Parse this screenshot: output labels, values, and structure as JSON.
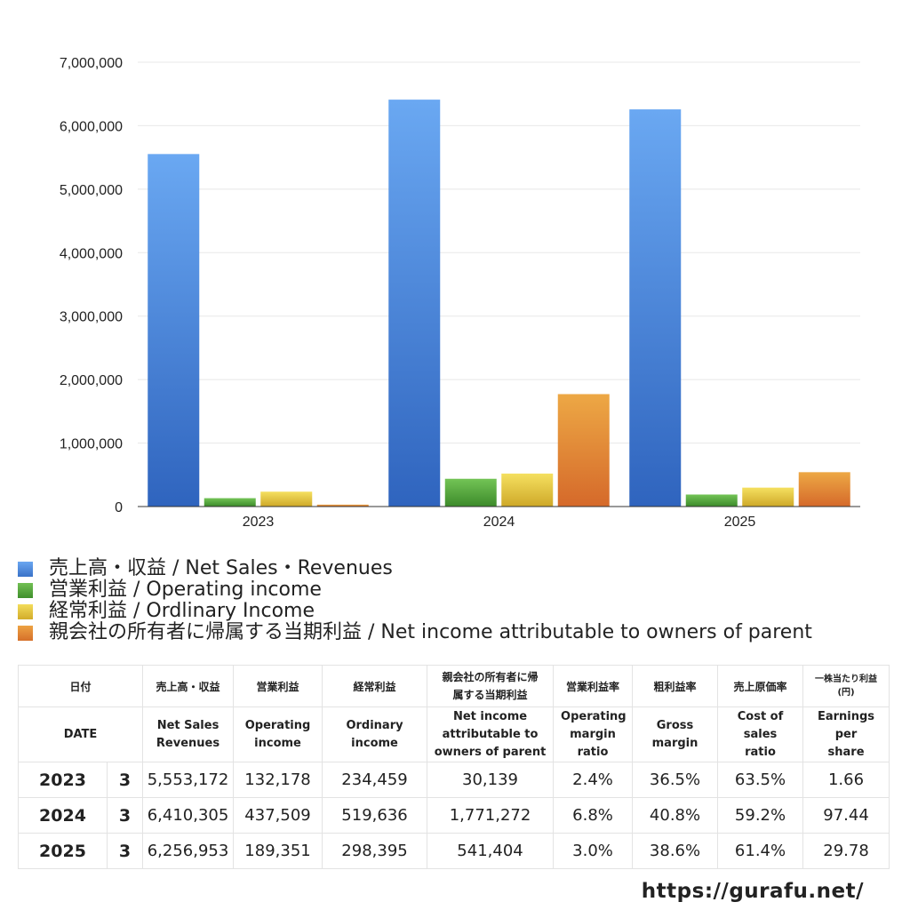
{
  "chart_data": {
    "type": "bar",
    "categories": [
      "2023",
      "2024",
      "2025"
    ],
    "ylim": [
      0,
      7000000
    ],
    "yticks": [
      "7,000,000",
      "6,000,000",
      "5,000,000",
      "4,000,000",
      "3,000,000",
      "2,000,000",
      "1,000,000",
      "0"
    ],
    "grid": true,
    "legend_position": "bottom",
    "series": [
      {
        "name": "売上高・収益 / Net Sales・Revenues",
        "values": [
          5553172,
          6410305,
          6256953
        ],
        "color": "#4a84d8"
      },
      {
        "name": "営業利益 / Operating income",
        "values": [
          132178,
          437509,
          189351
        ],
        "color": "#52a33a"
      },
      {
        "name": "経常利益 / Ordlinary Income",
        "values": [
          234459,
          519636,
          298395
        ],
        "color": "#e2c232"
      },
      {
        "name": "親会社の所有者に帰属する当期利益 / Net income attributable to owners of parent",
        "values": [
          30139,
          1771272,
          541404
        ],
        "color": "#e07e2e"
      }
    ]
  },
  "table": {
    "headers_jp": [
      "日付",
      "売上高・収益",
      "営業利益",
      "経常利益",
      "親会社の所有者に帰属する当期利益",
      "営業利益率",
      "粗利益率",
      "売上原価率",
      "一株当たり利益(円)"
    ],
    "headers_en": [
      "DATE",
      "Net Sales Revenues",
      "Operating income",
      "Ordinary income",
      "Net income attributable to owners of parent",
      "Operating margin ratio",
      "Gross margin",
      "Cost of sales ratio",
      "Earnings per share"
    ],
    "rows": [
      [
        "2023",
        "3",
        "5,553,172",
        "132,178",
        "234,459",
        "30,139",
        "2.4%",
        "36.5%",
        "63.5%",
        "1.66"
      ],
      [
        "2024",
        "3",
        "6,410,305",
        "437,509",
        "519,636",
        "1,771,272",
        "6.8%",
        "40.8%",
        "59.2%",
        "97.44"
      ],
      [
        "2025",
        "3",
        "6,256,953",
        "189,351",
        "298,395",
        "541,404",
        "3.0%",
        "38.6%",
        "61.4%",
        "29.78"
      ]
    ]
  },
  "footer": {
    "url": "https://gurafu.net/"
  }
}
